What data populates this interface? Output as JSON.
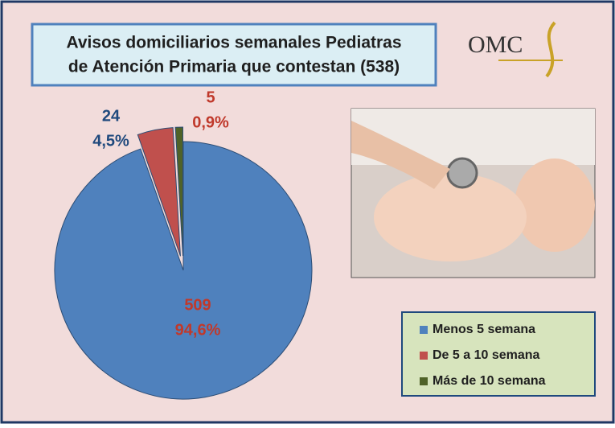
{
  "chart_data": {
    "type": "pie",
    "title": [
      "Avisos domiciliarios semanales Pediatras",
      "de Atención Primaria que contestan  (538)"
    ],
    "logo": "OMC",
    "categories": [
      "Menos 5 semana",
      "De 5 a 10 semana",
      "Más de 10 semana"
    ],
    "values": [
      509,
      24,
      5
    ],
    "percentages": [
      94.6,
      4.5,
      0.9
    ],
    "percentage_labels": [
      "94,6%",
      "4,5%",
      "0,9%"
    ],
    "colors": [
      "#4f81bd",
      "#c0504d",
      "#4f6228"
    ],
    "label_colors": [
      "#c0392b",
      "#1f497d",
      "#c0392b"
    ],
    "exploded": [
      false,
      true,
      true
    ],
    "legend": "bottom-right"
  }
}
